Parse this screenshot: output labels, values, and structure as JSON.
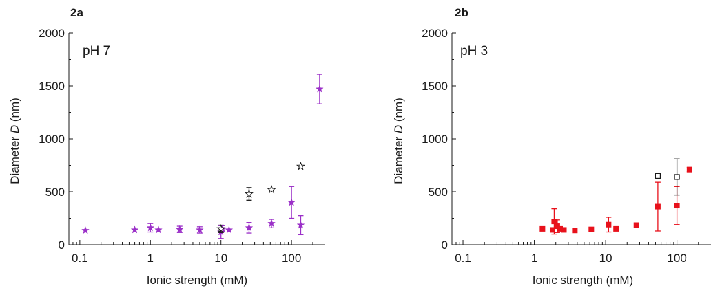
{
  "chart_data": [
    {
      "type": "scatter",
      "panel_label": "2a",
      "annotation": "pH 7",
      "xlabel": "Ionic strength (mM)",
      "ylabel_prefix": "Diameter ",
      "ylabel_var": "D",
      "ylabel_suffix": " (nm)",
      "xscale": "log",
      "xlim": [
        0.07,
        300
      ],
      "ylim": [
        0,
        2000
      ],
      "xticks": [
        0.1,
        1,
        10,
        100
      ],
      "xtick_labels": [
        "0.1",
        "1",
        "10",
        "100"
      ],
      "yticks": [
        0,
        500,
        1000,
        1500,
        2000
      ],
      "ytick_labels": [
        "0",
        "500",
        "1000",
        "1500",
        "2000"
      ],
      "grid": false,
      "series": [
        {
          "marker": "filled-star",
          "color": "#9b30c8",
          "points": [
            {
              "x": 0.12,
              "y": 135,
              "err": 0
            },
            {
              "x": 0.6,
              "y": 140,
              "err": 0
            },
            {
              "x": 1.0,
              "y": 160,
              "err": 40
            },
            {
              "x": 1.3,
              "y": 140,
              "err": 0
            },
            {
              "x": 2.6,
              "y": 145,
              "err": 30
            },
            {
              "x": 5.0,
              "y": 140,
              "err": 30
            },
            {
              "x": 10,
              "y": 120,
              "err": 60
            },
            {
              "x": 10.5,
              "y": 150,
              "err": 30
            },
            {
              "x": 13,
              "y": 140,
              "err": 0
            },
            {
              "x": 25,
              "y": 160,
              "err": 50
            },
            {
              "x": 52,
              "y": 200,
              "err": 40
            },
            {
              "x": 100,
              "y": 400,
              "err": 150
            },
            {
              "x": 135,
              "y": 185,
              "err": 90
            },
            {
              "x": 250,
              "y": 1470,
              "err": 140
            }
          ]
        },
        {
          "marker": "open-star",
          "color": "#1a1a1a",
          "points": [
            {
              "x": 10,
              "y": 150,
              "err": 35
            },
            {
              "x": 25,
              "y": 480,
              "err": 60
            },
            {
              "x": 52,
              "y": 520,
              "err": 0
            },
            {
              "x": 135,
              "y": 740,
              "err": 0
            }
          ]
        }
      ]
    },
    {
      "type": "scatter",
      "panel_label": "2b",
      "annotation": "pH 3",
      "xlabel": "Ionic strength (mM)",
      "ylabel_prefix": "Diameter ",
      "ylabel_var": "D",
      "ylabel_suffix": " (nm)",
      "xscale": "log",
      "xlim": [
        0.07,
        300
      ],
      "ylim": [
        0,
        2000
      ],
      "xticks": [
        0.1,
        1,
        10,
        100
      ],
      "xtick_labels": [
        "0.1",
        "1",
        "10",
        "100"
      ],
      "yticks": [
        0,
        500,
        1000,
        1500,
        2000
      ],
      "ytick_labels": [
        "0",
        "500",
        "1000",
        "1500",
        "2000"
      ],
      "grid": false,
      "series": [
        {
          "marker": "filled-square",
          "color": "#e8111b",
          "points": [
            {
              "x": 1.3,
              "y": 150,
              "err": 0
            },
            {
              "x": 1.8,
              "y": 140,
              "err": 0
            },
            {
              "x": 1.9,
              "y": 220,
              "err": 120
            },
            {
              "x": 2.1,
              "y": 175,
              "err": 60
            },
            {
              "x": 2.3,
              "y": 150,
              "err": 0
            },
            {
              "x": 2.6,
              "y": 140,
              "err": 0
            },
            {
              "x": 3.7,
              "y": 135,
              "err": 0
            },
            {
              "x": 6.3,
              "y": 145,
              "err": 0
            },
            {
              "x": 11,
              "y": 190,
              "err": 70
            },
            {
              "x": 14,
              "y": 150,
              "err": 0
            },
            {
              "x": 27,
              "y": 185,
              "err": 0
            },
            {
              "x": 54,
              "y": 360,
              "err": 230
            },
            {
              "x": 100,
              "y": 370,
              "err": 180
            },
            {
              "x": 150,
              "y": 710,
              "err": 20
            }
          ]
        },
        {
          "marker": "open-square",
          "color": "#1a1a1a",
          "points": [
            {
              "x": 54,
              "y": 650,
              "err": 0
            },
            {
              "x": 100,
              "y": 640,
              "err": 170
            }
          ]
        }
      ]
    }
  ]
}
